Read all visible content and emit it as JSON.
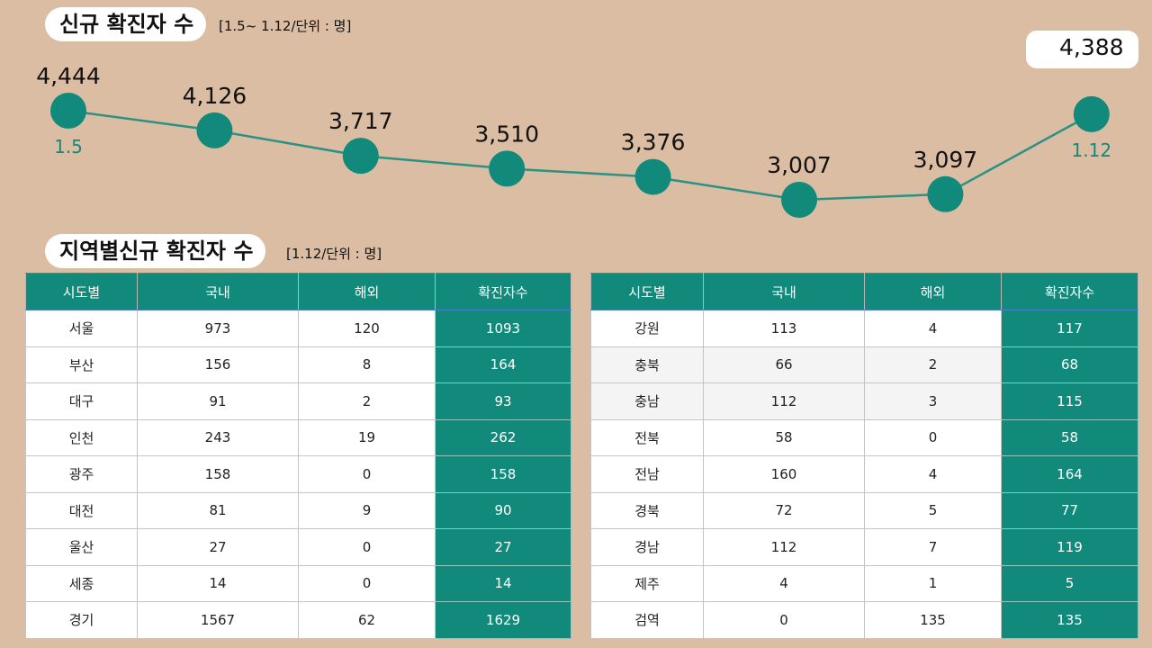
{
  "title": "신규 확진자 수",
  "unit_note": "[1.5~ 1.12/단위 : 명]",
  "table_title": "지역별신규 확진자 수",
  "table_unit_note": "[1.12/단위 : 명]",
  "colors": {
    "accent": "#128a7b",
    "background": "#dbbda3",
    "line": "#2b9283"
  },
  "chart_data": {
    "type": "line",
    "x": [
      "1.5",
      "",
      "",
      "",
      "",
      "",
      "",
      "1.12"
    ],
    "series": [
      {
        "values": [
          4444,
          4126,
          3717,
          3510,
          3376,
          3007,
          3097,
          4388
        ]
      }
    ],
    "value_labels": [
      "4,444",
      "4,126",
      "3,717",
      "3,510",
      "3,376",
      "3,007",
      "3,097",
      "4,388"
    ],
    "grid": false
  },
  "table": {
    "headers": [
      "시도별",
      "국내",
      "해외",
      "확진자수"
    ],
    "left": [
      [
        "서울",
        "973",
        "120",
        "1093"
      ],
      [
        "부산",
        "156",
        "8",
        "164"
      ],
      [
        "대구",
        "91",
        "2",
        "93"
      ],
      [
        "인천",
        "243",
        "19",
        "262"
      ],
      [
        "광주",
        "158",
        "0",
        "158"
      ],
      [
        "대전",
        "81",
        "9",
        "90"
      ],
      [
        "울산",
        "27",
        "0",
        "27"
      ],
      [
        "세종",
        "14",
        "0",
        "14"
      ],
      [
        "경기",
        "1567",
        "62",
        "1629"
      ]
    ],
    "right": [
      [
        "강원",
        "113",
        "4",
        "117"
      ],
      [
        "충북",
        "66",
        "2",
        "68"
      ],
      [
        "충남",
        "112",
        "3",
        "115"
      ],
      [
        "전북",
        "58",
        "0",
        "58"
      ],
      [
        "전남",
        "160",
        "4",
        "164"
      ],
      [
        "경북",
        "72",
        "5",
        "77"
      ],
      [
        "경남",
        "112",
        "7",
        "119"
      ],
      [
        "제주",
        "4",
        "1",
        "5"
      ],
      [
        "검역",
        "0",
        "135",
        "135"
      ]
    ]
  }
}
